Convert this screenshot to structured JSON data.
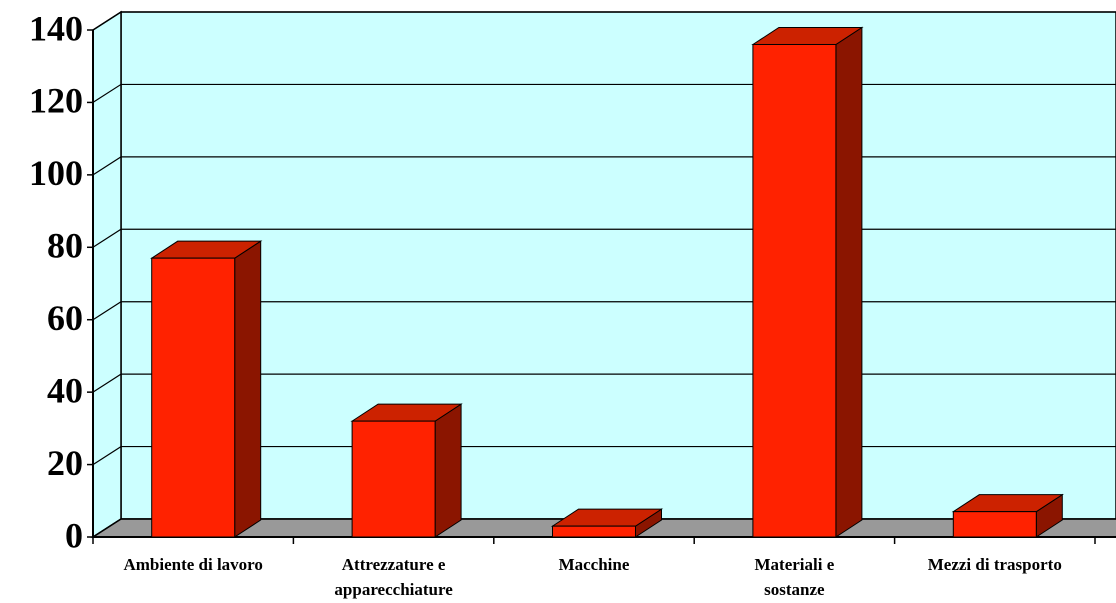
{
  "chart_data": {
    "type": "bar3d",
    "categories": [
      "Ambiente di lavoro",
      "Attrezzature e\napparecchiature",
      "Macchine",
      "Materiali e\nsostanze",
      "Mezzi di trasporto"
    ],
    "values": [
      77,
      32,
      3,
      136,
      7
    ],
    "color": "#ff2200",
    "ylim": [
      0,
      140
    ],
    "yticks": [
      0,
      20,
      40,
      60,
      80,
      100,
      120,
      140
    ],
    "grid": true
  }
}
